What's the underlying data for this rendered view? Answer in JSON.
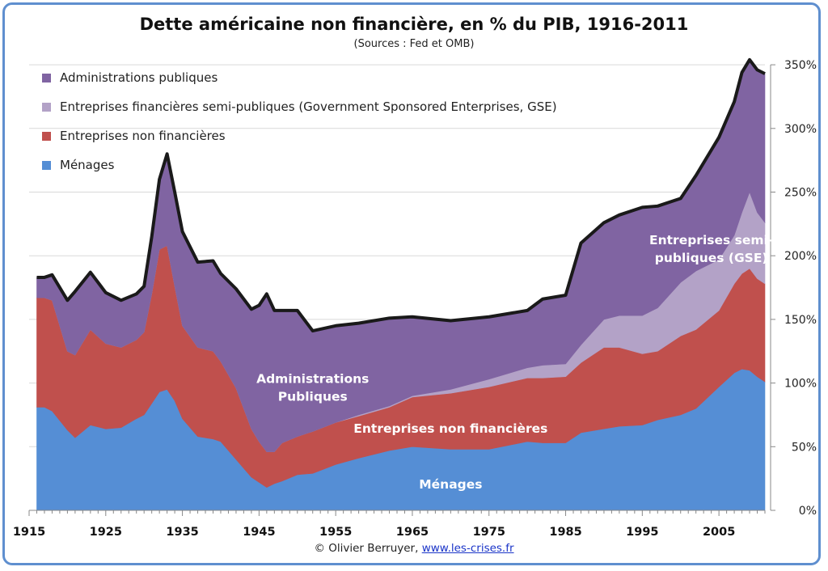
{
  "title": "Dette américaine non financière, en % du PIB, 1916-2011",
  "subtitle": "(Sources : Fed et OMB)",
  "credit": {
    "text": "© Olivier Berruyer, ",
    "link": "www.les-crises.fr"
  },
  "colors": {
    "menages": "#558ed5",
    "entreprises": "#c0504d",
    "gse": "#b3a2c7",
    "admin": "#8064a2",
    "total_line": "#1a1a1a",
    "frame": "#5f8fcf"
  },
  "chart_data": {
    "type": "area",
    "stacked": true,
    "title": "Dette américaine non financière, en % du PIB, 1916-2011",
    "xlabel": "",
    "ylabel": "",
    "xlim": [
      1915,
      2011
    ],
    "ylim": [
      0,
      360
    ],
    "x_ticks": [
      "1915",
      "1925",
      "1935",
      "1945",
      "1955",
      "1965",
      "1975",
      "1985",
      "1995",
      "2005"
    ],
    "y_ticks": [
      "0%",
      "50%",
      "100%",
      "150%",
      "200%",
      "250%",
      "300%",
      "350%"
    ],
    "y_tick_values": [
      0,
      50,
      100,
      150,
      200,
      250,
      300,
      350
    ],
    "y_axis_side": "right",
    "legend": {
      "position": "top-left",
      "order": [
        "Administrations publiques",
        "Entreprises financières semi-publiques (Government Sponsored Enterprises, GSE)",
        "Entreprises non financières",
        "Ménages"
      ]
    },
    "x": [
      1916,
      1917,
      1918,
      1920,
      1921,
      1923,
      1925,
      1927,
      1929,
      1930,
      1931,
      1932,
      1933,
      1934,
      1935,
      1937,
      1939,
      1940,
      1942,
      1944,
      1945,
      1946,
      1947,
      1948,
      1950,
      1952,
      1955,
      1958,
      1962,
      1965,
      1970,
      1975,
      1980,
      1982,
      1985,
      1987,
      1990,
      1992,
      1995,
      1997,
      2000,
      2002,
      2005,
      2007,
      2008,
      2009,
      2010,
      2011
    ],
    "series": [
      {
        "name": "Ménages",
        "values": [
          81,
          81,
          78,
          63,
          57,
          67,
          64,
          65,
          72,
          75,
          84,
          93,
          95,
          86,
          72,
          58,
          56,
          54,
          40,
          26,
          22,
          18,
          21,
          23,
          28,
          29,
          36,
          41,
          47,
          50,
          48,
          48,
          54,
          53,
          53,
          61,
          64,
          66,
          67,
          71,
          75,
          80,
          97,
          108,
          111,
          110,
          105,
          101
        ]
      },
      {
        "name": "Entreprises non financières",
        "values": [
          86,
          86,
          87,
          62,
          65,
          75,
          67,
          63,
          62,
          65,
          86,
          112,
          113,
          90,
          73,
          70,
          69,
          63,
          56,
          38,
          32,
          28,
          25,
          30,
          30,
          33,
          33,
          33,
          34,
          39,
          44,
          49,
          50,
          51,
          52,
          55,
          64,
          62,
          56,
          54,
          62,
          62,
          60,
          70,
          75,
          80,
          77,
          77
        ]
      },
      {
        "name": "Entreprises financières semi-publiques (Government Sponsored Enterprises, GSE)",
        "values": [
          0,
          0,
          0,
          0,
          0,
          0,
          0,
          0,
          0,
          0,
          0,
          0,
          0,
          0,
          0,
          0,
          0,
          0,
          0,
          0,
          0,
          0,
          0,
          0,
          0,
          0,
          0,
          1,
          1,
          1,
          3,
          6,
          8,
          10,
          10,
          14,
          22,
          25,
          30,
          34,
          42,
          46,
          40,
          38,
          48,
          60,
          52,
          48
        ]
      },
      {
        "name": "Administrations publiques",
        "values": [
          16,
          16,
          20,
          40,
          50,
          45,
          40,
          37,
          36,
          36,
          45,
          55,
          72,
          74,
          74,
          67,
          71,
          69,
          78,
          94,
          107,
          124,
          111,
          104,
          99,
          79,
          76,
          72,
          69,
          62,
          54,
          49,
          45,
          52,
          54,
          80,
          76,
          79,
          85,
          80,
          66,
          75,
          96,
          105,
          110,
          104,
          112,
          117
        ]
      }
    ],
    "annotations": [
      {
        "text": "Administrations",
        "x": 1952,
        "y": 100
      },
      {
        "text": "Publiques",
        "x": 1952,
        "y": 86
      },
      {
        "text": "Entreprises non financières",
        "x": 1970,
        "y": 61
      },
      {
        "text": "Ménages",
        "x": 1970,
        "y": 17
      },
      {
        "text": "Entreprises semi-",
        "x": 2004,
        "y": 209
      },
      {
        "text": "publiques (GSE)",
        "x": 2004,
        "y": 195
      }
    ]
  }
}
